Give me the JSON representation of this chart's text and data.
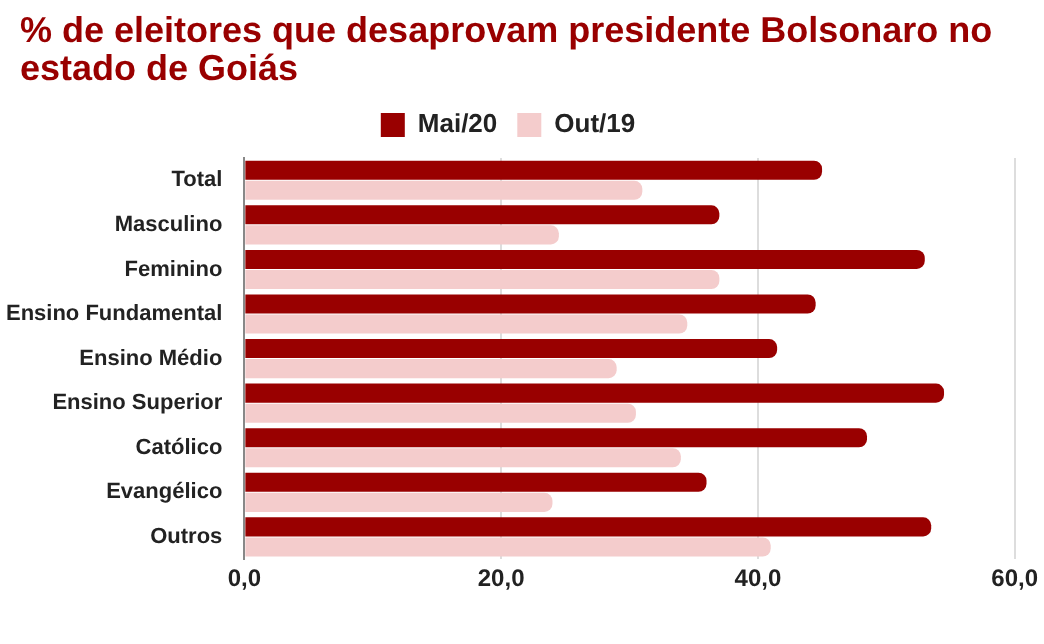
{
  "chart_data": {
    "type": "bar",
    "orientation": "horizontal",
    "title": "% de eleitores que desaprovam presidente Bolsonaro no estado de Goiás",
    "categories": [
      "Total",
      "Masculino",
      "Feminino",
      "Ensino Fundamental",
      "Ensino Médio",
      "Ensino Superior",
      "Católico",
      "Evangélico",
      "Outros"
    ],
    "series": [
      {
        "name": "Mai/20",
        "color": "#990000",
        "values": [
          45,
          37,
          53,
          44.5,
          41.5,
          54.5,
          48.5,
          36,
          53.5
        ]
      },
      {
        "name": "Out/19",
        "color": "#f4cccc",
        "values": [
          31,
          24.5,
          37,
          34.5,
          29,
          30.5,
          34,
          24,
          41
        ]
      }
    ],
    "xlim": [
      0,
      60
    ],
    "xticks": [
      {
        "value": 0,
        "label": "0,0"
      },
      {
        "value": 20,
        "label": "20,0"
      },
      {
        "value": 40,
        "label": "40,0"
      },
      {
        "value": 60,
        "label": "60,0"
      }
    ],
    "grid": "x",
    "legend": "top"
  }
}
